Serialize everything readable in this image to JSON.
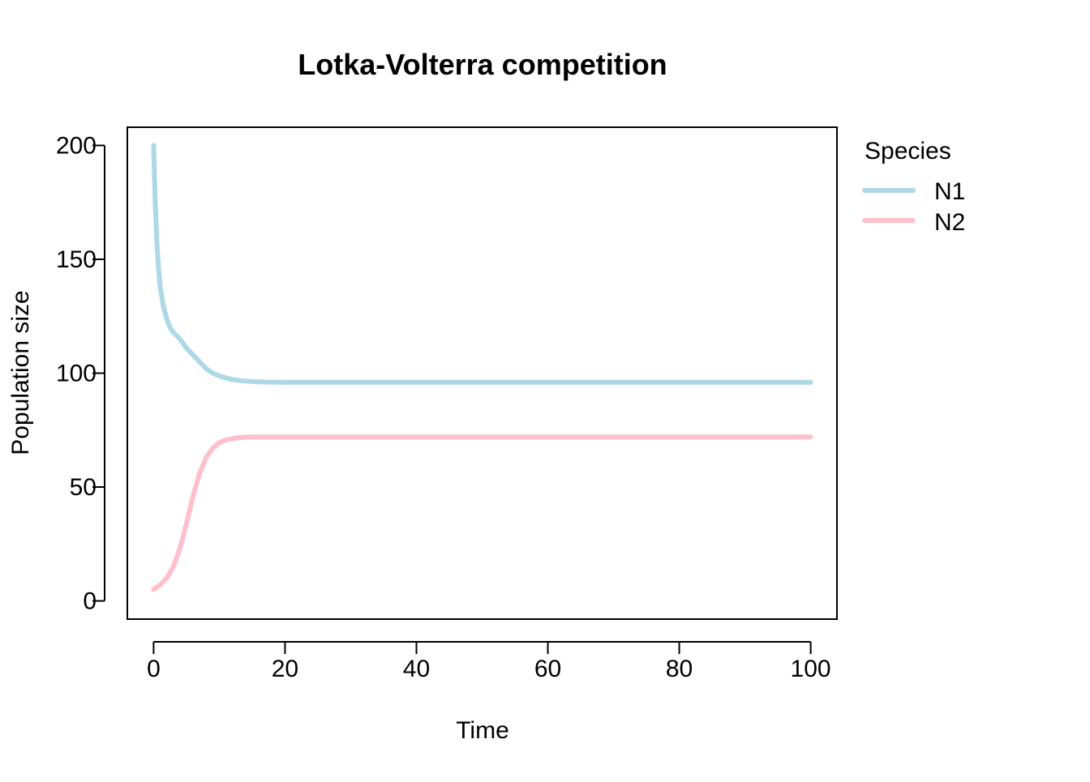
{
  "chart_data": {
    "type": "line",
    "title": "Lotka-Volterra competition",
    "xlabel": "Time",
    "ylabel": "Population size",
    "xlim": [
      -4,
      104
    ],
    "ylim": [
      -8,
      208
    ],
    "xticks": [
      0,
      20,
      40,
      60,
      80,
      100
    ],
    "yticks": [
      0,
      50,
      100,
      150,
      200
    ],
    "grid": false,
    "legend": {
      "title": "Species",
      "position": "right"
    },
    "series": [
      {
        "name": "N1",
        "color": "#add8e6",
        "x": [
          0,
          0.25,
          0.5,
          0.75,
          1,
          1.5,
          2,
          2.5,
          3,
          4,
          5,
          6,
          7,
          8,
          9,
          10,
          11,
          12,
          13,
          14,
          15,
          17,
          20,
          25,
          30,
          40,
          50,
          60,
          70,
          80,
          90,
          100
        ],
        "y": [
          200,
          175,
          157,
          146,
          138,
          129,
          124,
          120,
          118,
          115,
          111,
          108,
          105,
          102,
          100,
          98.8,
          97.9,
          97.2,
          96.8,
          96.5,
          96.3,
          96.1,
          96,
          96,
          96,
          96,
          96,
          96,
          96,
          96,
          96,
          96
        ]
      },
      {
        "name": "N2",
        "color": "#ffc0cb",
        "x": [
          0,
          1,
          2,
          3,
          4,
          5,
          6,
          7,
          8,
          9,
          10,
          11,
          12,
          13,
          14,
          15,
          17,
          20,
          25,
          30,
          40,
          50,
          60,
          70,
          80,
          90,
          100
        ],
        "y": [
          5,
          7,
          10,
          15,
          23,
          34,
          46,
          56,
          63,
          67,
          69.5,
          70.7,
          71.3,
          71.7,
          71.9,
          72,
          72,
          72,
          72,
          72,
          72,
          72,
          72,
          72,
          72,
          72,
          72
        ]
      }
    ]
  }
}
